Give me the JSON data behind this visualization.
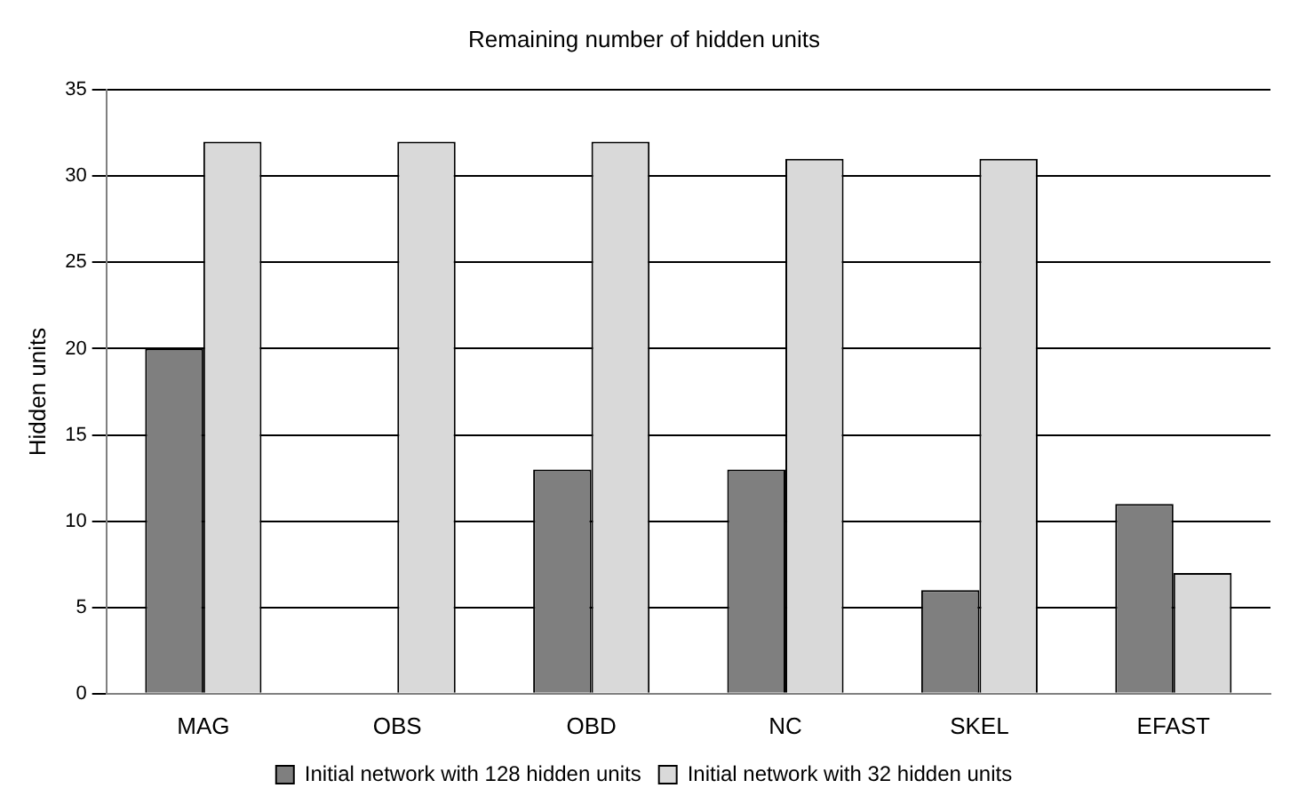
{
  "chart_data": {
    "type": "bar",
    "title": "Remaining number of hidden units",
    "ylabel": "Hidden units",
    "categories": [
      "MAG",
      "OBS",
      "OBD",
      "NC",
      "SKEL",
      "EFAST"
    ],
    "series": [
      {
        "name": "Initial network with 128 hidden units",
        "color": "#7f7f7f",
        "values": [
          20,
          0,
          13,
          13,
          6,
          11
        ]
      },
      {
        "name": "Initial network with 32 hidden units",
        "color": "#d9d9d9",
        "values": [
          32,
          32,
          32,
          31,
          31,
          7
        ]
      }
    ],
    "ylim": [
      0,
      35
    ],
    "yticks": [
      0,
      5,
      10,
      15,
      20,
      25,
      30,
      35
    ],
    "grid": "y",
    "legend": "bottom"
  }
}
